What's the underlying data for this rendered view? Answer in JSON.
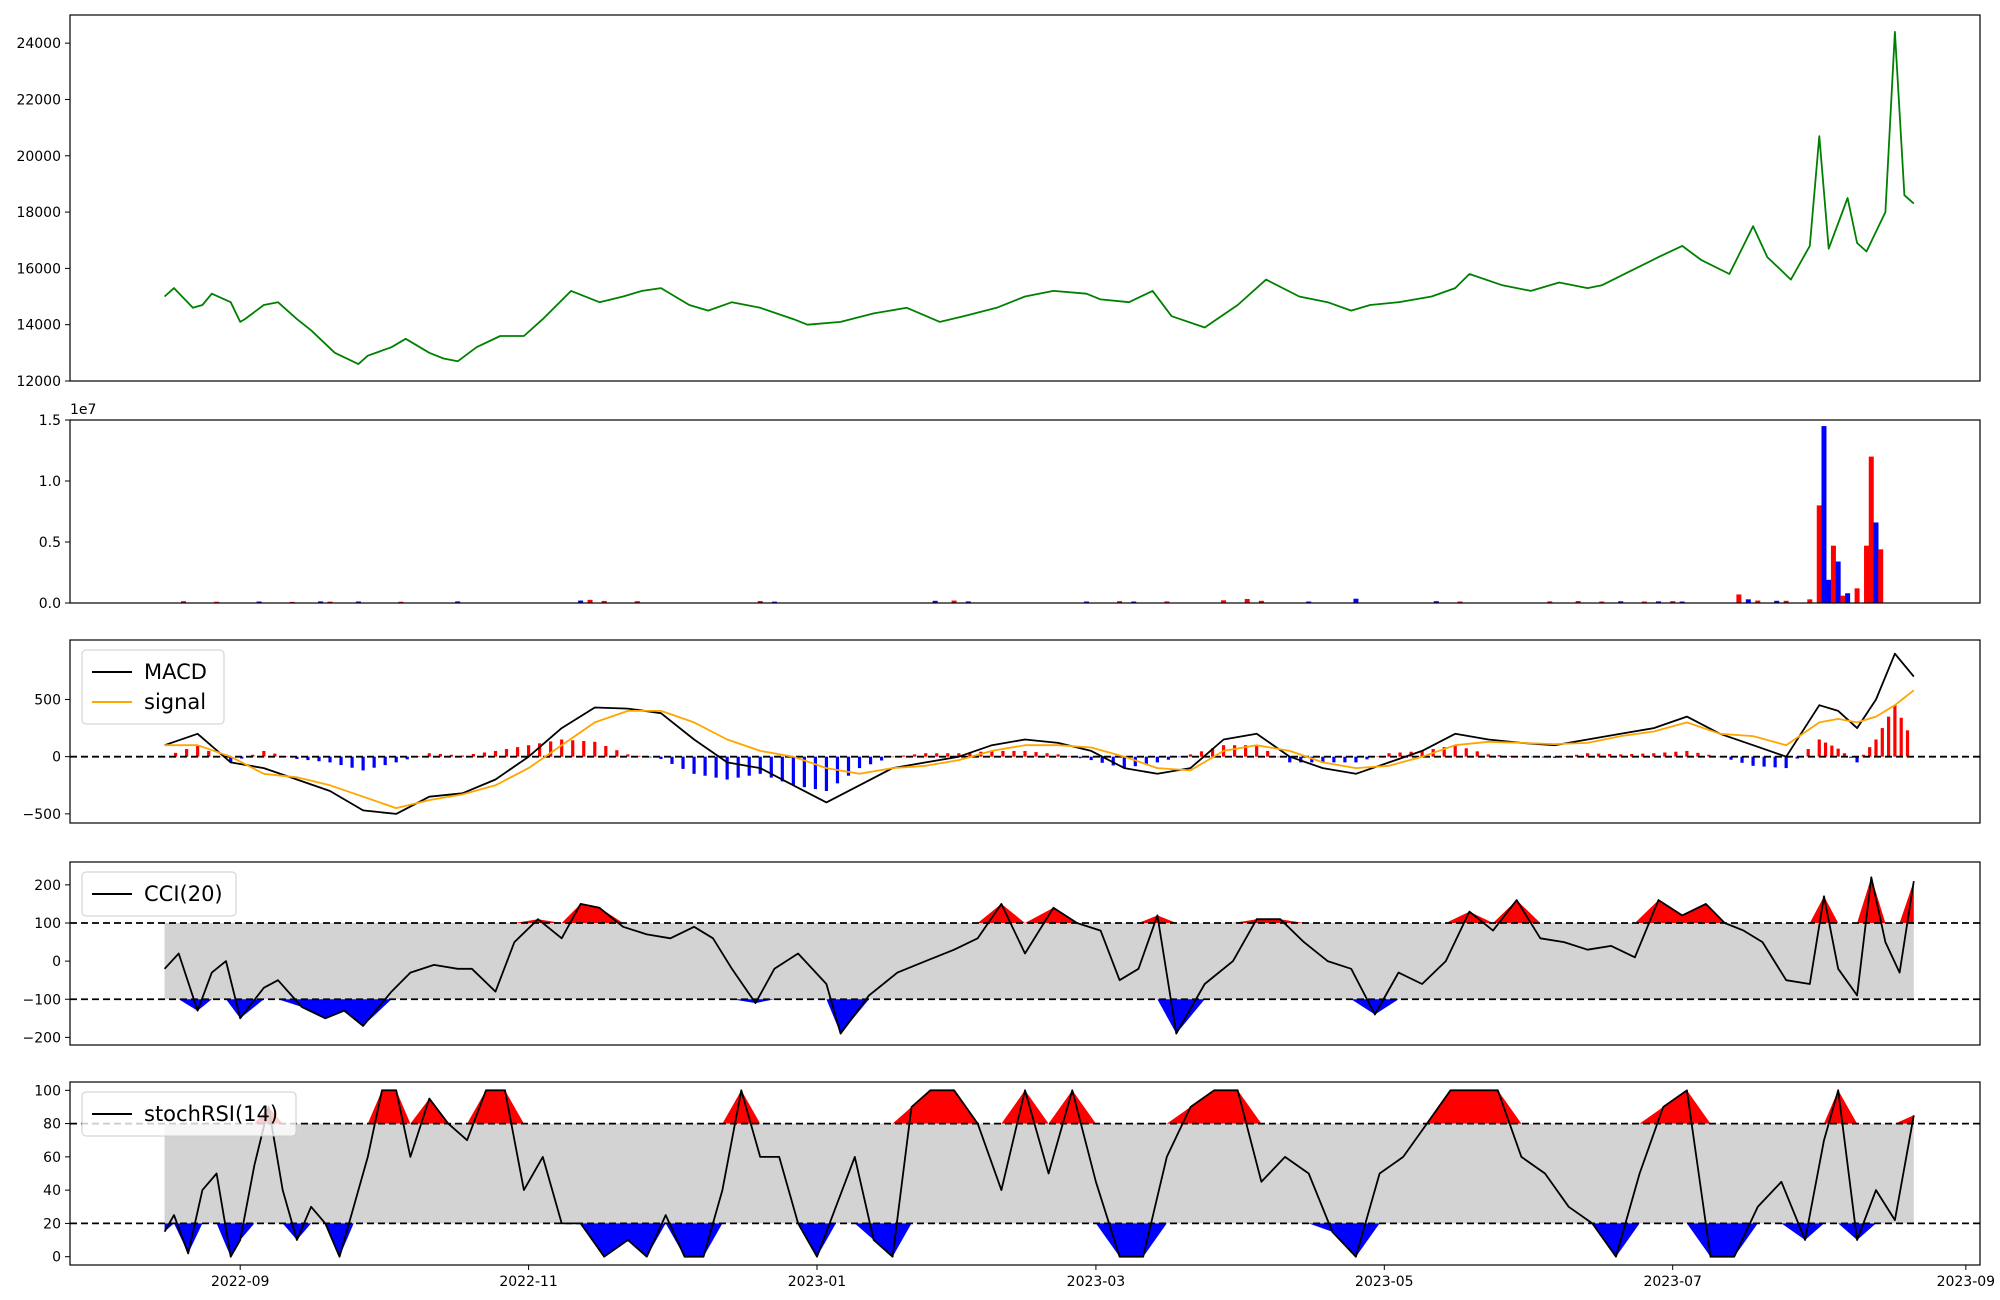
{
  "chart_data": [
    {
      "id": "price",
      "type": "line",
      "ylim": [
        12000,
        25000
      ],
      "yticks": [
        12000,
        14000,
        16000,
        18000,
        20000,
        22000,
        24000
      ],
      "ytick_labels": [
        "12000",
        "14000",
        "16000",
        "18000",
        "20000",
        "22000",
        "24000"
      ],
      "color": "#008000",
      "x": [
        "2022-08-16",
        "2022-08-18",
        "2022-08-22",
        "2022-08-24",
        "2022-08-26",
        "2022-08-30",
        "2022-09-01",
        "2022-09-02",
        "2022-09-06",
        "2022-09-09",
        "2022-09-13",
        "2022-09-16",
        "2022-09-21",
        "2022-09-26",
        "2022-09-28",
        "2022-10-03",
        "2022-10-06",
        "2022-10-11",
        "2022-10-14",
        "2022-10-17",
        "2022-10-21",
        "2022-10-26",
        "2022-10-31",
        "2022-11-04",
        "2022-11-10",
        "2022-11-16",
        "2022-11-21",
        "2022-11-25",
        "2022-11-29",
        "2022-12-05",
        "2022-12-09",
        "2022-12-14",
        "2022-12-20",
        "2022-12-27",
        "2022-12-30",
        "2023-01-06",
        "2023-01-13",
        "2023-01-20",
        "2023-01-27",
        "2023-02-01",
        "2023-02-08",
        "2023-02-14",
        "2023-02-20",
        "2023-02-27",
        "2023-03-02",
        "2023-03-08",
        "2023-03-13",
        "2023-03-17",
        "2023-03-24",
        "2023-03-31",
        "2023-04-06",
        "2023-04-13",
        "2023-04-19",
        "2023-04-24",
        "2023-04-28",
        "2023-05-04",
        "2023-05-11",
        "2023-05-16",
        "2023-05-19",
        "2023-05-26",
        "2023-06-01",
        "2023-06-07",
        "2023-06-13",
        "2023-06-16",
        "2023-06-22",
        "2023-06-28",
        "2023-07-03",
        "2023-07-07",
        "2023-07-13",
        "2023-07-18",
        "2023-07-21",
        "2023-07-26",
        "2023-07-30",
        "2023-08-01",
        "2023-08-03",
        "2023-08-07",
        "2023-08-09",
        "2023-08-11",
        "2023-08-15",
        "2023-08-17",
        "2023-08-19",
        "2023-08-21"
      ],
      "y": [
        15000,
        15300,
        14600,
        14700,
        15100,
        14800,
        14100,
        14200,
        14700,
        14800,
        14200,
        13800,
        13000,
        12600,
        12900,
        13200,
        13500,
        13000,
        12800,
        12700,
        13200,
        13600,
        13600,
        14200,
        15200,
        14800,
        15000,
        15200,
        15300,
        14700,
        14500,
        14800,
        14600,
        14200,
        14000,
        14100,
        14400,
        14600,
        14100,
        14300,
        14600,
        15000,
        15200,
        15100,
        14900,
        14800,
        15200,
        14300,
        13900,
        14700,
        15600,
        15000,
        14800,
        14500,
        14700,
        14800,
        15000,
        15300,
        15800,
        15400,
        15200,
        15500,
        15300,
        15400,
        15900,
        16400,
        16800,
        16300,
        15800,
        17500,
        16400,
        15600,
        16800,
        20700,
        16700,
        18500,
        16900,
        16600,
        18000,
        24400,
        18600,
        18300
      ]
    },
    {
      "id": "volume",
      "type": "bar",
      "ylim": [
        0,
        15000000
      ],
      "yticks": [
        0,
        5000000,
        10000000,
        15000000
      ],
      "ytick_labels": [
        "0.0",
        "0.5",
        "1.0",
        "1.5"
      ],
      "offset_label": "1e7",
      "colors": {
        "up": "#ff0000",
        "down": "#0000ff"
      },
      "bars": [
        [
          "2022-08-20",
          150000,
          "up"
        ],
        [
          "2022-08-27",
          100000,
          "up"
        ],
        [
          "2022-09-05",
          120000,
          "down"
        ],
        [
          "2022-09-12",
          90000,
          "up"
        ],
        [
          "2022-09-18",
          130000,
          "down"
        ],
        [
          "2022-09-20",
          110000,
          "up"
        ],
        [
          "2022-09-26",
          120000,
          "down"
        ],
        [
          "2022-10-05",
          100000,
          "up"
        ],
        [
          "2022-10-17",
          130000,
          "down"
        ],
        [
          "2022-11-12",
          200000,
          "down"
        ],
        [
          "2022-11-14",
          260000,
          "up"
        ],
        [
          "2022-11-17",
          170000,
          "up"
        ],
        [
          "2022-11-24",
          150000,
          "up"
        ],
        [
          "2022-12-20",
          160000,
          "up"
        ],
        [
          "2022-12-23",
          110000,
          "down"
        ],
        [
          "2023-01-26",
          180000,
          "down"
        ],
        [
          "2023-01-30",
          200000,
          "up"
        ],
        [
          "2023-02-02",
          130000,
          "down"
        ],
        [
          "2023-02-27",
          120000,
          "down"
        ],
        [
          "2023-03-06",
          150000,
          "up"
        ],
        [
          "2023-03-09",
          120000,
          "down"
        ],
        [
          "2023-03-16",
          130000,
          "up"
        ],
        [
          "2023-03-28",
          220000,
          "up"
        ],
        [
          "2023-04-02",
          330000,
          "up"
        ],
        [
          "2023-04-05",
          180000,
          "up"
        ],
        [
          "2023-04-15",
          120000,
          "down"
        ],
        [
          "2023-04-25",
          350000,
          "down"
        ],
        [
          "2023-05-12",
          150000,
          "down"
        ],
        [
          "2023-05-17",
          120000,
          "up"
        ],
        [
          "2023-06-05",
          130000,
          "up"
        ],
        [
          "2023-06-11",
          160000,
          "up"
        ],
        [
          "2023-06-16",
          120000,
          "up"
        ],
        [
          "2023-06-20",
          140000,
          "down"
        ],
        [
          "2023-06-25",
          120000,
          "up"
        ],
        [
          "2023-06-28",
          130000,
          "down"
        ],
        [
          "2023-07-01",
          150000,
          "up"
        ],
        [
          "2023-07-03",
          120000,
          "down"
        ],
        [
          "2023-07-15",
          700000,
          "up"
        ],
        [
          "2023-07-17",
          300000,
          "down"
        ],
        [
          "2023-07-19",
          200000,
          "up"
        ],
        [
          "2023-07-23",
          180000,
          "down"
        ],
        [
          "2023-07-25",
          180000,
          "up"
        ],
        [
          "2023-07-30",
          300000,
          "up"
        ],
        [
          "2023-08-01",
          8000000,
          "up"
        ],
        [
          "2023-08-02",
          14500000,
          "down"
        ],
        [
          "2023-08-03",
          1900000,
          "down"
        ],
        [
          "2023-08-04",
          4700000,
          "up"
        ],
        [
          "2023-08-05",
          3400000,
          "down"
        ],
        [
          "2023-08-06",
          600000,
          "up"
        ],
        [
          "2023-08-07",
          800000,
          "down"
        ],
        [
          "2023-08-09",
          1200000,
          "up"
        ],
        [
          "2023-08-11",
          4700000,
          "up"
        ],
        [
          "2023-08-12",
          12000000,
          "up"
        ],
        [
          "2023-08-13",
          6600000,
          "down"
        ],
        [
          "2023-08-14",
          4400000,
          "up"
        ]
      ]
    },
    {
      "id": "macd",
      "type": "line",
      "ylim": [
        -580,
        1020
      ],
      "yticks": [
        -500,
        0,
        500
      ],
      "ytick_labels": [
        "−500",
        "0",
        "500"
      ],
      "legend": [
        {
          "name": "MACD",
          "color": "#000000"
        },
        {
          "name": "signal",
          "color": "#ffa500"
        }
      ],
      "x": [
        "2022-08-16",
        "2022-08-23",
        "2022-08-30",
        "2022-09-06",
        "2022-09-13",
        "2022-09-20",
        "2022-09-27",
        "2022-10-04",
        "2022-10-11",
        "2022-10-18",
        "2022-10-25",
        "2022-11-01",
        "2022-11-08",
        "2022-11-15",
        "2022-11-22",
        "2022-11-29",
        "2022-12-06",
        "2022-12-13",
        "2022-12-20",
        "2022-12-27",
        "2023-01-03",
        "2023-01-10",
        "2023-01-17",
        "2023-01-24",
        "2023-01-31",
        "2023-02-07",
        "2023-02-14",
        "2023-02-21",
        "2023-02-28",
        "2023-03-07",
        "2023-03-14",
        "2023-03-21",
        "2023-03-28",
        "2023-04-04",
        "2023-04-11",
        "2023-04-18",
        "2023-04-25",
        "2023-05-02",
        "2023-05-09",
        "2023-05-16",
        "2023-05-23",
        "2023-05-30",
        "2023-06-06",
        "2023-06-13",
        "2023-06-20",
        "2023-06-27",
        "2023-07-04",
        "2023-07-11",
        "2023-07-18",
        "2023-07-25",
        "2023-08-01",
        "2023-08-05",
        "2023-08-09",
        "2023-08-13",
        "2023-08-17",
        "2023-08-21"
      ],
      "series": [
        {
          "name": "MACD",
          "color": "#000000",
          "values": [
            100,
            200,
            -50,
            -100,
            -200,
            -300,
            -470,
            -500,
            -350,
            -320,
            -200,
            0,
            250,
            430,
            420,
            380,
            150,
            -50,
            -100,
            -250,
            -400,
            -250,
            -100,
            -50,
            0,
            100,
            150,
            120,
            50,
            -100,
            -150,
            -100,
            150,
            200,
            0,
            -100,
            -150,
            -50,
            50,
            200,
            150,
            120,
            100,
            150,
            200,
            250,
            350,
            200,
            100,
            0,
            450,
            400,
            250,
            500,
            900,
            700
          ]
        },
        {
          "name": "signal",
          "color": "#ffa500",
          "values": [
            100,
            100,
            0,
            -150,
            -180,
            -250,
            -350,
            -450,
            -380,
            -330,
            -250,
            -100,
            100,
            300,
            400,
            400,
            300,
            150,
            50,
            0,
            -100,
            -150,
            -100,
            -80,
            -30,
            50,
            100,
            100,
            80,
            0,
            -100,
            -120,
            50,
            100,
            50,
            -50,
            -100,
            -80,
            0,
            100,
            130,
            120,
            110,
            120,
            180,
            220,
            300,
            200,
            180,
            100,
            300,
            330,
            300,
            350,
            450,
            580
          ]
        }
      ]
    },
    {
      "id": "cci",
      "type": "line",
      "ylim": [
        -220,
        260
      ],
      "yticks": [
        -200,
        -100,
        0,
        100,
        200
      ],
      "ytick_labels": [
        "−200",
        "−100",
        "0",
        "100",
        "200"
      ],
      "hlines": [
        100,
        -100
      ],
      "legend": [
        {
          "name": "CCI(20)",
          "color": "#000000"
        }
      ],
      "x": [
        "2022-08-16",
        "2022-08-19",
        "2022-08-23",
        "2022-08-26",
        "2022-08-29",
        "2022-09-01",
        "2022-09-06",
        "2022-09-09",
        "2022-09-14",
        "2022-09-19",
        "2022-09-23",
        "2022-09-27",
        "2022-10-03",
        "2022-10-07",
        "2022-10-12",
        "2022-10-17",
        "2022-10-20",
        "2022-10-25",
        "2022-10-29",
        "2022-11-03",
        "2022-11-08",
        "2022-11-12",
        "2022-11-16",
        "2022-11-21",
        "2022-11-26",
        "2022-12-01",
        "2022-12-06",
        "2022-12-10",
        "2022-12-14",
        "2022-12-19",
        "2022-12-23",
        "2022-12-28",
        "2023-01-03",
        "2023-01-06",
        "2023-01-12",
        "2023-01-18",
        "2023-01-24",
        "2023-01-30",
        "2023-02-04",
        "2023-02-09",
        "2023-02-14",
        "2023-02-20",
        "2023-02-25",
        "2023-03-02",
        "2023-03-06",
        "2023-03-10",
        "2023-03-14",
        "2023-03-18",
        "2023-03-24",
        "2023-03-30",
        "2023-04-04",
        "2023-04-09",
        "2023-04-14",
        "2023-04-19",
        "2023-04-24",
        "2023-04-29",
        "2023-05-04",
        "2023-05-09",
        "2023-05-14",
        "2023-05-19",
        "2023-05-24",
        "2023-05-29",
        "2023-06-03",
        "2023-06-08",
        "2023-06-13",
        "2023-06-18",
        "2023-06-23",
        "2023-06-28",
        "2023-07-03",
        "2023-07-08",
        "2023-07-12",
        "2023-07-16",
        "2023-07-20",
        "2023-07-25",
        "2023-07-30",
        "2023-08-02",
        "2023-08-05",
        "2023-08-09",
        "2023-08-12",
        "2023-08-15",
        "2023-08-18",
        "2023-08-21"
      ],
      "values": [
        -20,
        20,
        -130,
        -30,
        0,
        -150,
        -70,
        -50,
        -120,
        -150,
        -130,
        -170,
        -80,
        -30,
        -10,
        -20,
        -20,
        -80,
        50,
        110,
        60,
        150,
        140,
        90,
        70,
        60,
        90,
        60,
        -20,
        -110,
        -20,
        20,
        -60,
        -190,
        -90,
        -30,
        0,
        30,
        60,
        150,
        20,
        140,
        100,
        80,
        -50,
        -20,
        120,
        -190,
        -60,
        0,
        110,
        110,
        50,
        0,
        -20,
        -140,
        -30,
        -60,
        0,
        130,
        80,
        160,
        60,
        50,
        30,
        40,
        10,
        160,
        120,
        150,
        100,
        80,
        50,
        -50,
        -60,
        170,
        -20,
        -90,
        220,
        50,
        -30,
        210
      ]
    },
    {
      "id": "stochrsi",
      "type": "line",
      "ylim": [
        -5,
        105
      ],
      "yticks": [
        0,
        20,
        40,
        60,
        80,
        100
      ],
      "ytick_labels": [
        "0",
        "20",
        "40",
        "60",
        "80",
        "100"
      ],
      "hlines": [
        80,
        20
      ],
      "legend": [
        {
          "name": "stochRSI(14)",
          "color": "#000000"
        }
      ],
      "x": [
        "2022-08-16",
        "2022-08-18",
        "2022-08-21",
        "2022-08-24",
        "2022-08-27",
        "2022-08-30",
        "2022-09-01",
        "2022-09-04",
        "2022-09-07",
        "2022-09-10",
        "2022-09-13",
        "2022-09-16",
        "2022-09-19",
        "2022-09-22",
        "2022-09-25",
        "2022-09-28",
        "2022-10-01",
        "2022-10-04",
        "2022-10-07",
        "2022-10-11",
        "2022-10-15",
        "2022-10-19",
        "2022-10-23",
        "2022-10-27",
        "2022-10-31",
        "2022-11-04",
        "2022-11-08",
        "2022-11-12",
        "2022-11-17",
        "2022-11-22",
        "2022-11-26",
        "2022-11-30",
        "2022-12-04",
        "2022-12-08",
        "2022-12-12",
        "2022-12-16",
        "2022-12-20",
        "2022-12-24",
        "2022-12-28",
        "2023-01-01",
        "2023-01-05",
        "2023-01-09",
        "2023-01-13",
        "2023-01-17",
        "2023-01-21",
        "2023-01-25",
        "2023-01-30",
        "2023-02-04",
        "2023-02-09",
        "2023-02-14",
        "2023-02-19",
        "2023-02-24",
        "2023-03-01",
        "2023-03-06",
        "2023-03-11",
        "2023-03-16",
        "2023-03-21",
        "2023-03-26",
        "2023-03-31",
        "2023-04-05",
        "2023-04-10",
        "2023-04-15",
        "2023-04-20",
        "2023-04-25",
        "2023-04-30",
        "2023-05-05",
        "2023-05-10",
        "2023-05-15",
        "2023-05-20",
        "2023-05-25",
        "2023-05-30",
        "2023-06-04",
        "2023-06-09",
        "2023-06-14",
        "2023-06-19",
        "2023-06-24",
        "2023-06-29",
        "2023-07-04",
        "2023-07-09",
        "2023-07-14",
        "2023-07-19",
        "2023-07-24",
        "2023-07-29",
        "2023-08-02",
        "2023-08-05",
        "2023-08-09",
        "2023-08-13",
        "2023-08-17",
        "2023-08-21"
      ],
      "values": [
        15,
        25,
        2,
        40,
        50,
        0,
        10,
        55,
        90,
        40,
        10,
        30,
        20,
        0,
        30,
        60,
        100,
        100,
        60,
        95,
        80,
        70,
        100,
        100,
        40,
        60,
        20,
        20,
        0,
        10,
        0,
        25,
        0,
        0,
        40,
        100,
        60,
        60,
        20,
        0,
        30,
        60,
        10,
        0,
        90,
        100,
        100,
        80,
        40,
        100,
        50,
        100,
        45,
        0,
        0,
        60,
        90,
        100,
        100,
        45,
        60,
        50,
        15,
        0,
        50,
        60,
        80,
        100,
        100,
        100,
        60,
        50,
        30,
        20,
        0,
        50,
        90,
        100,
        0,
        0,
        30,
        45,
        10,
        70,
        100,
        10,
        40,
        22,
        85
      ]
    }
  ],
  "x_axis": {
    "ticks": [
      "2022-09-01",
      "2022-11-01",
      "2023-01-01",
      "2023-03-01",
      "2023-05-01",
      "2023-07-01",
      "2023-09-01"
    ],
    "tick_labels": [
      "2022-09",
      "2022-11",
      "2023-01",
      "2023-03",
      "2023-05",
      "2023-07",
      "2023-09"
    ],
    "xlim": [
      "2022-07-27",
      "2023-09-04"
    ]
  }
}
